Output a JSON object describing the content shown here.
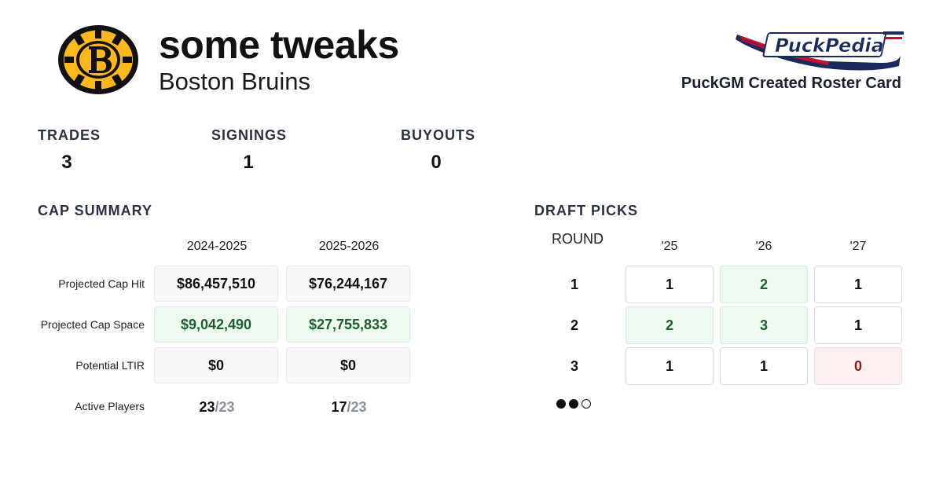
{
  "header": {
    "title": "some tweaks",
    "team_name": "Boston Bruins",
    "team_logo_letter": "B",
    "brand_logo_text": "PuckPedia",
    "brand_caption": "PuckGM Created Roster Card"
  },
  "stats": [
    {
      "label": "TRADES",
      "value": "3"
    },
    {
      "label": "SIGNINGS",
      "value": "1"
    },
    {
      "label": "BUYOUTS",
      "value": "0"
    }
  ],
  "cap_summary": {
    "title": "CAP SUMMARY",
    "seasons": [
      "2024-2025",
      "2025-2026"
    ],
    "rows": [
      {
        "label": "Projected Cap Hit",
        "values": [
          "$86,457,510",
          "$76,244,167"
        ]
      },
      {
        "label": "Projected Cap Space",
        "values": [
          "$9,042,490",
          "$27,755,833"
        ]
      },
      {
        "label": "Potential LTIR",
        "values": [
          "$0",
          "$0"
        ]
      }
    ],
    "active_players": {
      "label": "Active Players",
      "values": [
        {
          "count": "23",
          "max": "/23"
        },
        {
          "count": "17",
          "max": "/23"
        }
      ]
    }
  },
  "draft_picks": {
    "title": "DRAFT PICKS",
    "round_label": "ROUND",
    "years": [
      "'25",
      "'26",
      "'27"
    ],
    "rounds": [
      {
        "round": "1",
        "picks": [
          "1",
          "2",
          "1"
        ]
      },
      {
        "round": "2",
        "picks": [
          "2",
          "3",
          "1"
        ]
      },
      {
        "round": "3",
        "picks": [
          "1",
          "1",
          "0"
        ]
      }
    ],
    "legend_dots": [
      "filled",
      "filled",
      "empty"
    ]
  },
  "colors": {
    "bruins_gold": "#FFB81C",
    "bruins_black": "#111111",
    "positive_bg": "#eefaf0",
    "positive_text": "#1e5f2f",
    "negative_bg": "#fdf0f0",
    "negative_text": "#8a1c1c",
    "brand_navy": "#1b2a5c",
    "brand_red": "#c8102e"
  }
}
